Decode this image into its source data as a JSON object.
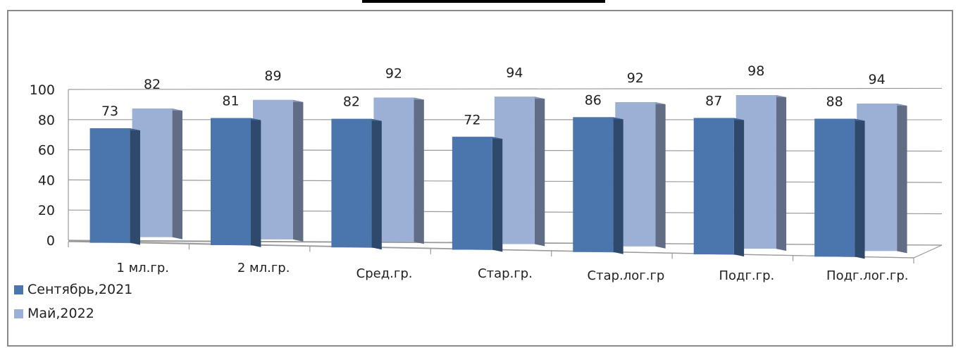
{
  "chart_data": {
    "type": "bar",
    "categories": [
      "1 мл.гр.",
      "2 мл.гр.",
      "Сред.гр.",
      "Стар.гр.",
      "Стар.лог.гр",
      "Подг.гр.",
      "Подг.лог.гр."
    ],
    "series": [
      {
        "name": "Сентябрь,2021",
        "color": "#4a75ad",
        "values": [
          73,
          81,
          82,
          72,
          86,
          87,
          88
        ]
      },
      {
        "name": "Май,2022",
        "color": "#9cb0d6",
        "values": [
          82,
          89,
          92,
          94,
          92,
          98,
          94
        ]
      }
    ],
    "yticks": [
      "0",
      "20",
      "40",
      "60",
      "80",
      "100"
    ],
    "ylim": [
      0,
      100
    ],
    "title": "",
    "xlabel": "",
    "ylabel": "",
    "grid": true,
    "legend_position": "bottom-left",
    "style": "3d-clustered-columns"
  }
}
